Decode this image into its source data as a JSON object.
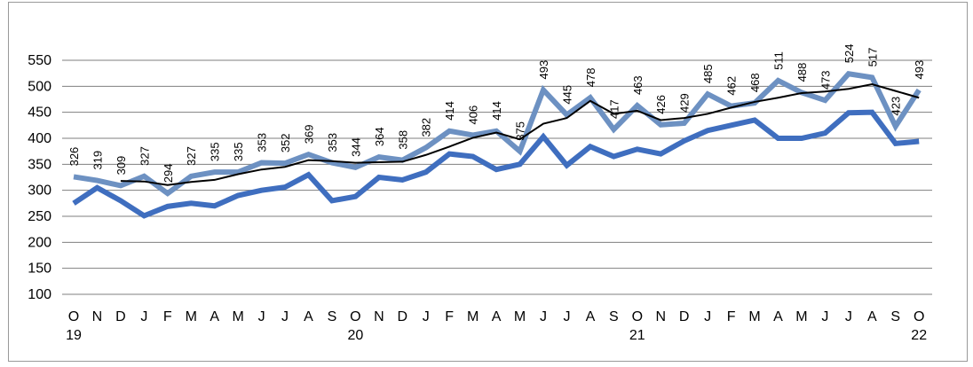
{
  "chart_data": {
    "type": "line",
    "title": "",
    "xlabel": "",
    "ylabel": "",
    "ylim": [
      100,
      550
    ],
    "yticks": [
      100,
      150,
      200,
      250,
      300,
      350,
      400,
      450,
      500,
      550
    ],
    "grid": true,
    "legend": "none",
    "categories": [
      "O",
      "N",
      "D",
      "J",
      "F",
      "M",
      "A",
      "M",
      "J",
      "J",
      "A",
      "S",
      "O",
      "N",
      "D",
      "J",
      "F",
      "M",
      "A",
      "M",
      "J",
      "J",
      "A",
      "S",
      "O",
      "N",
      "D",
      "J",
      "F",
      "M",
      "A",
      "M",
      "J",
      "J",
      "A",
      "S",
      "O"
    ],
    "year_labels": [
      {
        "index": 0,
        "label": "19"
      },
      {
        "index": 12,
        "label": "20"
      },
      {
        "index": 24,
        "label": "21"
      },
      {
        "index": 36,
        "label": "22"
      }
    ],
    "series": [
      {
        "key": "light",
        "color": "#6d91c2",
        "width": 6,
        "labeled": true,
        "values": [
          326,
          319,
          309,
          327,
          294,
          327,
          335,
          335,
          353,
          352,
          369,
          353,
          344,
          364,
          358,
          382,
          414,
          406,
          414,
          375,
          493,
          445,
          478,
          417,
          463,
          426,
          429,
          485,
          462,
          468,
          511,
          488,
          473,
          524,
          517,
          423,
          493
        ]
      },
      {
        "key": "dark",
        "color": "#3f6ebf",
        "width": 6,
        "labeled": false,
        "values": [
          275,
          305,
          280,
          251,
          269,
          275,
          270,
          290,
          300,
          306,
          330,
          280,
          288,
          325,
          320,
          335,
          370,
          365,
          340,
          350,
          403,
          348,
          384,
          365,
          379,
          370,
          395,
          415,
          425,
          435,
          400,
          400,
          410,
          449,
          450,
          390,
          394
        ]
      },
      {
        "key": "trend",
        "color": "#000000",
        "width": 2,
        "labeled": false,
        "values": [
          null,
          null,
          318,
          317,
          310,
          316,
          320,
          331,
          340,
          345,
          358,
          356,
          353,
          354,
          355,
          368,
          384,
          401,
          411,
          398,
          428,
          439,
          472,
          447,
          453,
          435,
          439,
          447,
          459,
          470,
          478,
          487,
          490,
          495,
          504,
          491,
          478
        ]
      }
    ]
  }
}
